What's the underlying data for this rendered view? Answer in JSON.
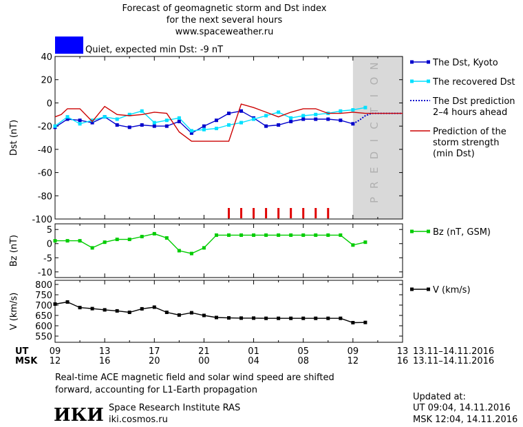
{
  "header": {
    "title_line1": "Forecast of geomagnetic storm and Dst index",
    "title_line2": "for the next several hours",
    "website": "www.spaceweather.ru",
    "status_text": "Quiet, expected min Dst: -9 nT",
    "status_color": "#0000ff"
  },
  "chart_data": [
    {
      "type": "line",
      "panel": "dst",
      "ylabel": "Dst (nT)",
      "ylim": [
        -100,
        40
      ],
      "yticks": [
        40,
        20,
        0,
        -20,
        -40,
        -60,
        -80,
        -100
      ],
      "x_unit": "hours since 09 UT 13.11",
      "xlim": [
        0,
        28
      ],
      "prediction_region_text": "PREDICTION",
      "prediction_region": [
        24,
        28
      ],
      "series": [
        {
          "name": "The Dst, Kyoto",
          "color": "#0000cc",
          "marker": "square",
          "x": [
            0,
            1,
            2,
            3,
            4,
            5,
            6,
            7,
            8,
            9,
            10,
            11,
            12,
            13,
            14,
            15,
            16,
            17,
            18,
            19,
            20,
            21,
            22,
            23,
            24
          ],
          "y": [
            -21,
            -14,
            -15,
            -17,
            -12,
            -19,
            -21,
            -19,
            -20,
            -20,
            -16,
            -26,
            -20,
            -15,
            -9,
            -7,
            -13,
            -20,
            -19,
            -16,
            -14,
            -14,
            -14,
            -15,
            -18
          ]
        },
        {
          "name": "The recovered Dst",
          "color": "#00e0ff",
          "marker": "square",
          "x": [
            0,
            1,
            2,
            3,
            4,
            5,
            6,
            7,
            8,
            9,
            10,
            11,
            12,
            13,
            14,
            15,
            16,
            17,
            18,
            19,
            20,
            21,
            22,
            23,
            24,
            25
          ],
          "y": [
            -20,
            -12,
            -18,
            -15,
            -12,
            -14,
            -10,
            -7,
            -17,
            -15,
            -13,
            -24,
            -23,
            -22,
            -19,
            -17,
            -14,
            -11,
            -8,
            -13,
            -11,
            -10,
            -9,
            -7,
            -6,
            -4
          ]
        },
        {
          "name": "The Dst prediction\n2–4 hours ahead",
          "color": "#0000cc",
          "style": "dotted",
          "x": [
            24,
            24.5,
            25,
            25.5,
            26,
            27,
            28
          ],
          "y": [
            -18,
            -15,
            -11,
            -9,
            -9,
            -9,
            -9
          ]
        },
        {
          "name": "Prediction of the\nstorm strength\n(min Dst)",
          "color": "#cc0000",
          "style": "step",
          "x": [
            0,
            0.5,
            1,
            2,
            3,
            4,
            5,
            6,
            7,
            8,
            9,
            10,
            11,
            12,
            13,
            14,
            15,
            16,
            17,
            18,
            19,
            20,
            21,
            22,
            23,
            24,
            25,
            26,
            27,
            28
          ],
          "y": [
            -12,
            -10,
            -5,
            -5,
            -16,
            -3,
            -10,
            -11,
            -10,
            -8,
            -9,
            -25,
            -33,
            -33,
            -33,
            -33,
            -1,
            -4,
            -8,
            -12,
            -8,
            -5,
            -5,
            -9,
            -9,
            -8,
            -9,
            -9,
            -9,
            -9
          ]
        }
      ],
      "storm_markers_x": [
        14,
        15,
        16,
        17,
        18,
        19,
        20,
        21,
        22
      ]
    },
    {
      "type": "line",
      "panel": "bz",
      "ylabel": "Bz (nT)",
      "ylim": [
        -12,
        7
      ],
      "yticks": [
        5,
        0,
        -5,
        -10
      ],
      "series": [
        {
          "name": "Bz (nT, GSM)",
          "color": "#00cc00",
          "marker": "square",
          "x": [
            0,
            1,
            2,
            3,
            4,
            5,
            6,
            7,
            8,
            9,
            10,
            11,
            12,
            13,
            14,
            15,
            16,
            17,
            18,
            19,
            20,
            21,
            22,
            23,
            24,
            25
          ],
          "y": [
            1,
            1,
            1,
            -1.5,
            0.5,
            1.5,
            1.5,
            2.5,
            3.5,
            2,
            -2.5,
            -3.5,
            -1.5,
            3,
            3,
            3,
            3,
            3,
            3,
            3,
            3,
            3,
            3,
            3,
            -0.5,
            0.5
          ]
        }
      ]
    },
    {
      "type": "line",
      "panel": "v",
      "ylabel": "V (km/s)",
      "ylim": [
        520,
        820
      ],
      "yticks": [
        800,
        750,
        700,
        650,
        600,
        550
      ],
      "series": [
        {
          "name": "V (km/s)",
          "color": "#000000",
          "marker": "square",
          "x": [
            0,
            1,
            2,
            3,
            4,
            5,
            6,
            7,
            8,
            9,
            10,
            11,
            12,
            13,
            14,
            15,
            16,
            17,
            18,
            19,
            20,
            21,
            22,
            23,
            24,
            25
          ],
          "y": [
            705,
            715,
            688,
            683,
            677,
            672,
            665,
            682,
            690,
            665,
            652,
            663,
            650,
            640,
            638,
            637,
            637,
            636,
            636,
            636,
            636,
            636,
            636,
            636,
            615,
            616
          ]
        }
      ]
    }
  ],
  "x_axis": {
    "ut_label": "UT",
    "msk_label": "MSK",
    "ut_ticks": [
      "09",
      "13",
      "17",
      "21",
      "01",
      "05",
      "09",
      "13"
    ],
    "msk_ticks": [
      "12",
      "16",
      "20",
      "00",
      "04",
      "08",
      "12",
      "16"
    ],
    "date_range_ut": "13.11–14.11.2016",
    "date_range_msk": "13.11–14.11.2016"
  },
  "footer": {
    "note_line1": "Real-time ACE magnetic field and solar wind speed are shifted",
    "note_line2": "forward, accounting for L1-Earth propagation",
    "institute": "Space Research Institute RAS",
    "institute_url": "iki.cosmos.ru",
    "logo_text": "ИКИ",
    "updated_label": "Updated at:",
    "updated_ut": "UT   09:04, 14.11.2016",
    "updated_msk": "MSK 12:04, 14.11.2016"
  }
}
